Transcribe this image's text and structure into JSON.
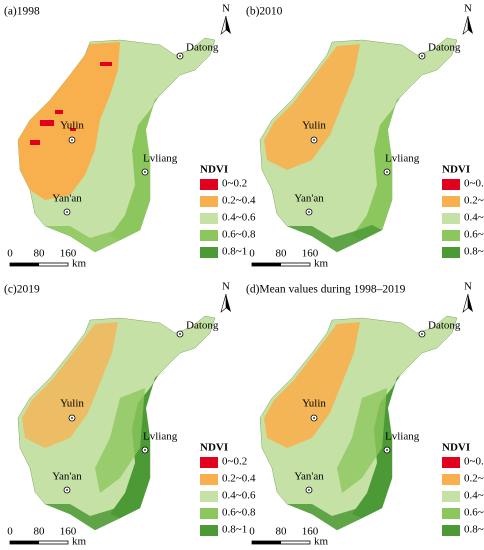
{
  "panels": [
    {
      "title": "(a)1998"
    },
    {
      "title": "(b)2010"
    },
    {
      "title": "(c)2019"
    },
    {
      "title": "(d)Mean values during 1998–2019"
    }
  ],
  "cities": [
    "Datong",
    "Yulin",
    "Lvliang",
    "Yan'an"
  ],
  "legend": {
    "title": "NDVI",
    "items": [
      {
        "label": "0~0.2",
        "color": "#e3001f"
      },
      {
        "label": "0.2~0.4",
        "color": "#f8b04e"
      },
      {
        "label": "0.4~0.6",
        "color": "#c6e1a6"
      },
      {
        "label": "0.6~0.8",
        "color": "#8cc75e"
      },
      {
        "label": "0.8~1",
        "color": "#4c9a36"
      }
    ]
  },
  "scale_bar": {
    "ticks": [
      "0",
      "80",
      "160"
    ],
    "unit": "km"
  },
  "north": "N"
}
